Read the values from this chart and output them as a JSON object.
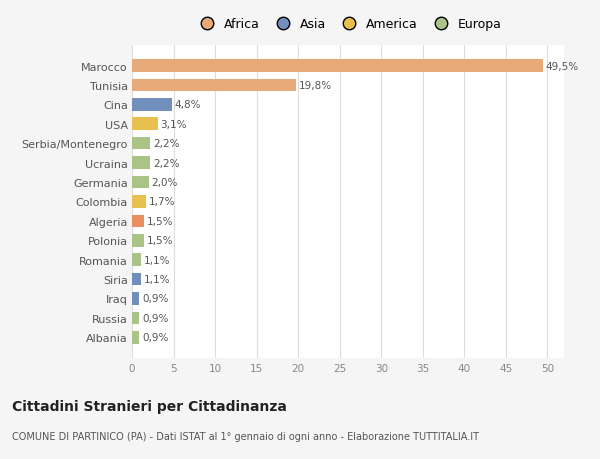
{
  "categories": [
    "Albania",
    "Russia",
    "Iraq",
    "Siria",
    "Romania",
    "Polonia",
    "Algeria",
    "Colombia",
    "Germania",
    "Ucraina",
    "Serbia/Montenegro",
    "USA",
    "Cina",
    "Tunisia",
    "Marocco"
  ],
  "values": [
    0.9,
    0.9,
    0.9,
    1.1,
    1.1,
    1.5,
    1.5,
    1.7,
    2.0,
    2.2,
    2.2,
    3.1,
    4.8,
    19.8,
    49.5
  ],
  "labels": [
    "0,9%",
    "0,9%",
    "0,9%",
    "1,1%",
    "1,1%",
    "1,5%",
    "1,5%",
    "1,7%",
    "2,0%",
    "2,2%",
    "2,2%",
    "3,1%",
    "4,8%",
    "19,8%",
    "49,5%"
  ],
  "colors": [
    "#aac488",
    "#aac488",
    "#7090bb",
    "#7090bb",
    "#aac488",
    "#aac488",
    "#e89060",
    "#e8c050",
    "#aac488",
    "#aac488",
    "#aac488",
    "#e8c050",
    "#7090bb",
    "#e8aa78",
    "#e8aa78"
  ],
  "legend_labels": [
    "Africa",
    "Asia",
    "America",
    "Europa"
  ],
  "legend_colors": [
    "#e8aa78",
    "#7090bb",
    "#e8c050",
    "#aac488"
  ],
  "title1": "Cittadini Stranieri per Cittadinanza",
  "title2": "COMUNE DI PARTINICO (PA) - Dati ISTAT al 1° gennaio di ogni anno - Elaborazione TUTTITALIA.IT",
  "xlim": [
    0,
    52
  ],
  "xticks": [
    0,
    5,
    10,
    15,
    20,
    25,
    30,
    35,
    40,
    45,
    50
  ],
  "background_color": "#f5f5f5",
  "bar_background": "#ffffff",
  "grid_color": "#dddddd"
}
